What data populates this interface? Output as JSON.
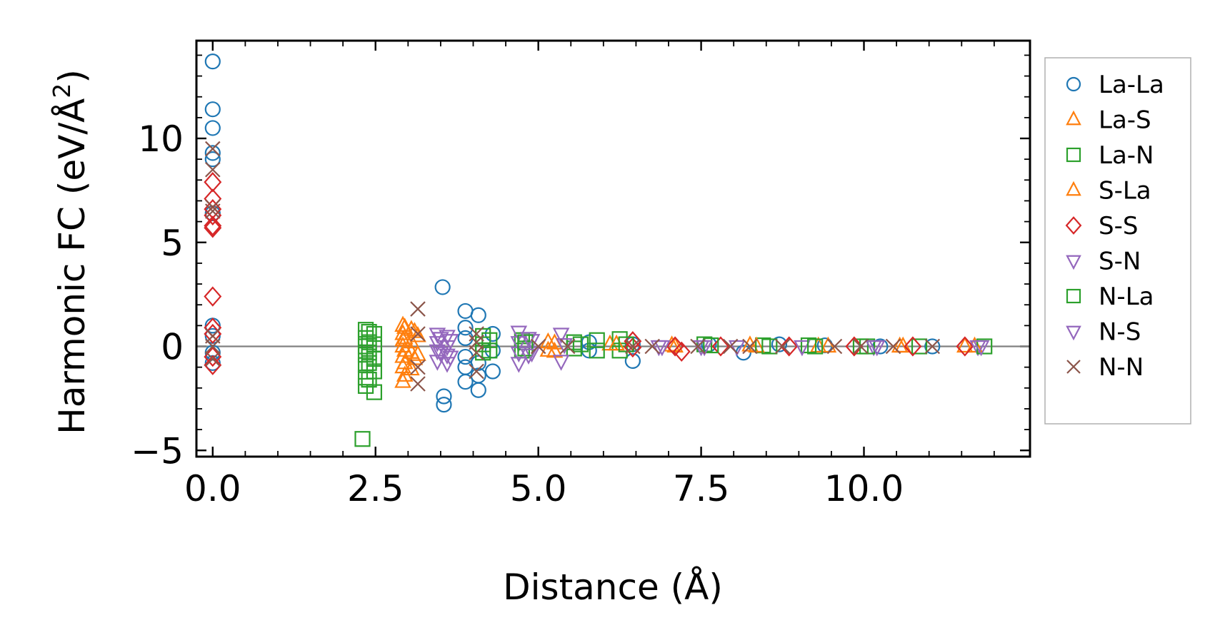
{
  "chart_data": {
    "type": "scatter",
    "title": "",
    "xlabel": "Distance (Å)",
    "ylabel_main": "Harmonic FC (eV/Å",
    "ylabel_sup": "2",
    "ylabel_close": ")",
    "xlim": [
      -0.25,
      12.55
    ],
    "ylim": [
      -5.3,
      14.7
    ],
    "xticks": [
      0.0,
      2.5,
      5.0,
      7.5,
      10.0
    ],
    "xtick_labels": [
      "0.0",
      "2.5",
      "5.0",
      "7.5",
      "10.0"
    ],
    "yticks": [
      -5,
      0,
      5,
      10
    ],
    "ytick_labels": [
      "−5",
      "0",
      "5",
      "10"
    ],
    "zero_line": true,
    "legend_position": "outside-right",
    "series": [
      {
        "name": "La-La",
        "marker": "circle",
        "color": "#1f77b4",
        "points": [
          [
            0,
            13.7
          ],
          [
            0,
            11.4
          ],
          [
            0,
            10.5
          ],
          [
            0,
            9.3
          ],
          [
            0,
            9.0
          ],
          [
            0,
            6.4
          ],
          [
            0,
            1.0
          ],
          [
            0,
            0.5
          ],
          [
            0,
            -0.3
          ],
          [
            0,
            -0.8
          ],
          [
            3.53,
            2.85
          ],
          [
            3.55,
            -2.4
          ],
          [
            3.55,
            -2.8
          ],
          [
            3.88,
            1.7
          ],
          [
            3.88,
            0.9
          ],
          [
            3.88,
            0.4
          ],
          [
            3.88,
            -0.5
          ],
          [
            3.88,
            -1.0
          ],
          [
            3.88,
            -1.7
          ],
          [
            4.08,
            1.5
          ],
          [
            4.08,
            -0.8
          ],
          [
            4.08,
            -1.4
          ],
          [
            4.08,
            -2.1
          ],
          [
            4.3,
            0.6
          ],
          [
            4.3,
            -0.2
          ],
          [
            4.3,
            -1.2
          ],
          [
            5.78,
            0.2
          ],
          [
            5.78,
            -0.2
          ],
          [
            6.45,
            0.1
          ],
          [
            6.45,
            -0.7
          ],
          [
            7.62,
            0.1
          ],
          [
            8.15,
            -0.3
          ],
          [
            8.7,
            0.1
          ],
          [
            9.4,
            0.05
          ],
          [
            10.25,
            0.0
          ],
          [
            11.05,
            0.0
          ]
        ]
      },
      {
        "name": "La-S",
        "marker": "triangle-up",
        "color": "#ff7f0e",
        "points": [
          [
            2.92,
            1.0
          ],
          [
            2.92,
            0.6
          ],
          [
            2.92,
            0.3
          ],
          [
            2.92,
            0.0
          ],
          [
            2.92,
            -0.5
          ],
          [
            2.92,
            -1.0
          ],
          [
            2.92,
            -1.7
          ],
          [
            3.05,
            0.8
          ],
          [
            3.05,
            0.2
          ],
          [
            3.05,
            -0.3
          ],
          [
            3.05,
            -1.1
          ],
          [
            3.15,
            0.5
          ],
          [
            3.15,
            -0.4
          ],
          [
            5.15,
            0.2
          ],
          [
            5.15,
            -0.2
          ],
          [
            6.1,
            0.1
          ],
          [
            7.05,
            0.05
          ],
          [
            8.25,
            0.05
          ],
          [
            9.3,
            0.0
          ],
          [
            10.55,
            0.0
          ],
          [
            11.55,
            0.0
          ]
        ]
      },
      {
        "name": "La-N",
        "marker": "square",
        "color": "#2ca02c",
        "points": [
          [
            2.35,
            0.8
          ],
          [
            2.35,
            0.4
          ],
          [
            2.35,
            0.0
          ],
          [
            2.35,
            -0.4
          ],
          [
            2.35,
            -0.9
          ],
          [
            2.35,
            -1.5
          ],
          [
            2.35,
            -1.9
          ],
          [
            2.48,
            0.6
          ],
          [
            2.48,
            0.1
          ],
          [
            2.48,
            -0.6
          ],
          [
            2.48,
            -1.2
          ],
          [
            2.48,
            -2.2
          ],
          [
            2.3,
            -4.45
          ],
          [
            4.15,
            0.5
          ],
          [
            4.15,
            0.1
          ],
          [
            4.15,
            -0.3
          ],
          [
            4.75,
            0.3
          ],
          [
            4.75,
            -0.2
          ],
          [
            5.55,
            0.2
          ],
          [
            5.55,
            -0.1
          ],
          [
            5.9,
            0.3
          ],
          [
            5.9,
            -0.2
          ],
          [
            6.25,
            0.35
          ],
          [
            6.25,
            -0.2
          ],
          [
            7.55,
            0.1
          ],
          [
            8.45,
            0.05
          ],
          [
            9.15,
            0.05
          ],
          [
            9.95,
            0.0
          ],
          [
            10.85,
            0.0
          ]
        ]
      },
      {
        "name": "S-La",
        "marker": "triangle-up",
        "color": "#ff7f0e",
        "points": [
          [
            2.95,
            0.9
          ],
          [
            2.95,
            0.4
          ],
          [
            2.95,
            -0.2
          ],
          [
            2.95,
            -0.8
          ],
          [
            2.95,
            -1.4
          ],
          [
            3.1,
            0.7
          ],
          [
            3.1,
            -0.6
          ],
          [
            5.25,
            0.15
          ],
          [
            5.25,
            -0.25
          ],
          [
            6.2,
            0.1
          ],
          [
            7.1,
            0.0
          ],
          [
            8.35,
            0.0
          ],
          [
            9.45,
            0.0
          ],
          [
            10.6,
            0.0
          ],
          [
            11.7,
            0.0
          ]
        ]
      },
      {
        "name": "S-S",
        "marker": "diamond",
        "color": "#d62728",
        "points": [
          [
            0,
            7.9
          ],
          [
            0,
            7.1
          ],
          [
            0,
            6.6
          ],
          [
            0,
            6.3
          ],
          [
            0,
            5.8
          ],
          [
            0,
            5.7
          ],
          [
            0,
            2.4
          ],
          [
            0,
            0.9
          ],
          [
            0,
            0.6
          ],
          [
            0,
            -0.5
          ],
          [
            0,
            -0.9
          ],
          [
            6.45,
            0.25
          ],
          [
            6.45,
            -0.05
          ],
          [
            7.1,
            0.0
          ],
          [
            7.2,
            -0.25
          ],
          [
            7.8,
            0.0
          ],
          [
            8.85,
            0.0
          ],
          [
            9.85,
            0.0
          ],
          [
            10.75,
            0.0
          ],
          [
            11.55,
            0.0
          ]
        ]
      },
      {
        "name": "S-N",
        "marker": "triangle-down",
        "color": "#9467bd",
        "points": [
          [
            3.45,
            0.6
          ],
          [
            3.45,
            0.2
          ],
          [
            3.45,
            -0.2
          ],
          [
            3.45,
            -0.7
          ],
          [
            3.6,
            0.5
          ],
          [
            3.6,
            0.0
          ],
          [
            3.6,
            -0.4
          ],
          [
            3.6,
            -0.8
          ],
          [
            4.7,
            0.7
          ],
          [
            4.7,
            0.2
          ],
          [
            4.7,
            -0.3
          ],
          [
            4.7,
            -0.8
          ],
          [
            4.9,
            0.3
          ],
          [
            4.9,
            -0.3
          ],
          [
            5.35,
            0.6
          ],
          [
            5.35,
            -0.7
          ],
          [
            6.85,
            0.0
          ],
          [
            7.5,
            0.0
          ],
          [
            8.05,
            0.0
          ],
          [
            9.05,
            0.0
          ],
          [
            10.15,
            0.0
          ],
          [
            11.75,
            0.0
          ]
        ]
      },
      {
        "name": "N-La",
        "marker": "square",
        "color": "#2ca02c",
        "points": [
          [
            2.4,
            0.7
          ],
          [
            2.4,
            0.2
          ],
          [
            2.4,
            -0.3
          ],
          [
            2.4,
            -0.8
          ],
          [
            2.4,
            -1.6
          ],
          [
            4.25,
            0.3
          ],
          [
            4.25,
            -0.2
          ],
          [
            4.8,
            0.2
          ],
          [
            4.8,
            -0.1
          ],
          [
            5.65,
            0.1
          ],
          [
            6.35,
            0.1
          ],
          [
            7.65,
            0.05
          ],
          [
            8.55,
            0.0
          ],
          [
            9.25,
            0.0
          ],
          [
            10.05,
            0.0
          ],
          [
            11.85,
            0.0
          ]
        ]
      },
      {
        "name": "N-S",
        "marker": "triangle-down",
        "color": "#9467bd",
        "points": [
          [
            3.5,
            0.4
          ],
          [
            3.5,
            -0.3
          ],
          [
            3.65,
            0.3
          ],
          [
            3.65,
            -0.5
          ],
          [
            4.85,
            0.4
          ],
          [
            4.85,
            -0.4
          ],
          [
            5.4,
            0.1
          ],
          [
            6.9,
            0.0
          ],
          [
            7.55,
            0.0
          ],
          [
            10.2,
            0.0
          ],
          [
            11.8,
            0.0
          ]
        ]
      },
      {
        "name": "N-N",
        "marker": "x",
        "color": "#8c564b",
        "points": [
          [
            0,
            9.5
          ],
          [
            0,
            8.5
          ],
          [
            0,
            6.7
          ],
          [
            0,
            6.5
          ],
          [
            0,
            0.5
          ],
          [
            0,
            0.0
          ],
          [
            0,
            -0.6
          ],
          [
            3.15,
            1.8
          ],
          [
            3.15,
            0.6
          ],
          [
            3.15,
            -1.0
          ],
          [
            3.15,
            -1.8
          ],
          [
            4.05,
            0.6
          ],
          [
            4.05,
            0.2
          ],
          [
            4.05,
            -0.3
          ],
          [
            4.05,
            -1.2
          ],
          [
            5.0,
            0.0
          ],
          [
            5.45,
            0.0
          ],
          [
            6.45,
            0.0
          ],
          [
            6.75,
            0.0
          ],
          [
            7.45,
            0.0
          ],
          [
            7.95,
            0.0
          ],
          [
            8.25,
            0.0
          ],
          [
            8.75,
            0.0
          ],
          [
            9.55,
            0.0
          ],
          [
            9.95,
            0.0
          ],
          [
            10.45,
            0.0
          ],
          [
            11.05,
            0.0
          ]
        ]
      }
    ]
  }
}
